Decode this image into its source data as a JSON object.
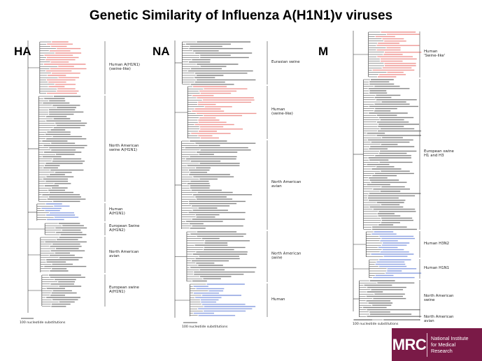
{
  "title": "Genetic Similarity of Influenza A(H1N1)v viruses",
  "colors": {
    "recent_h1n1v": "#e0413a",
    "human_h1n2": "#2f54c8",
    "branch": "#333333",
    "logo_bg": "#7a1a47"
  },
  "panels": [
    {
      "label": "HA",
      "clades": [
        {
          "text": "Human A(H1N1)\n(swine-like)",
          "color_group": "red"
        },
        {
          "text": "North American\nswine A(H1N1)",
          "color_group": "black"
        },
        {
          "text": "Human\nA(H1N1)",
          "color_group": "blue"
        },
        {
          "text": "European Swine\nA(H1N2)",
          "color_group": "black"
        },
        {
          "text": "North American\navian",
          "color_group": "black"
        },
        {
          "text": "European swine\nA(H1N1)",
          "color_group": "black"
        }
      ],
      "scale_text": "100 nucleotide substitutions"
    },
    {
      "label": "NA",
      "clades": [
        {
          "text": "Eurasian swine",
          "color_group": "black"
        },
        {
          "text": "Human\n(swine-like)",
          "color_group": "red"
        },
        {
          "text": "North American\navian",
          "color_group": "black"
        },
        {
          "text": "North American\nswine",
          "color_group": "black"
        },
        {
          "text": "Human",
          "color_group": "blue"
        }
      ],
      "scale_text": "100 nucleotide substitutions"
    },
    {
      "label": "M",
      "clades": [
        {
          "text": "Human\n'Swine-like'",
          "color_group": "red"
        },
        {
          "text": "European swine\nH1 and H3",
          "color_group": "black"
        },
        {
          "text": "Human H3N2",
          "color_group": "blue"
        },
        {
          "text": "Human H1N1",
          "color_group": "blue"
        },
        {
          "text": "North American\nswine",
          "color_group": "black"
        },
        {
          "text": "North American\navian",
          "color_group": "black"
        }
      ],
      "scale_text": "100 nucleotide substitutions"
    }
  ],
  "logo": {
    "mark": "MRC",
    "lines": [
      "National Institute",
      "for Medical",
      "Research"
    ]
  }
}
